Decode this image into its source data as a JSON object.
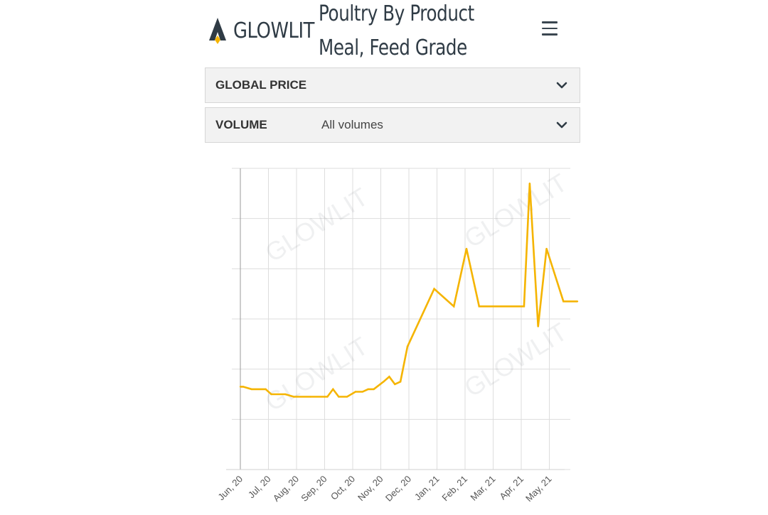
{
  "header": {
    "logo_text": "GLOWLIT",
    "title_line1": "Poultry By Product",
    "title_line2": "Meal, Feed Grade"
  },
  "filters": {
    "global_price_label": "GLOBAL PRICE",
    "volume_label": "VOLUME",
    "volume_value": "All volumes"
  },
  "icons": {
    "logo": "glowlit-logo-icon",
    "menu": "hamburger-menu-icon",
    "dropdown": "chevron-down-icon"
  },
  "colors": {
    "series": "#f5b400",
    "brand_accent": "#f5b400",
    "brand_dark": "#2f3b45"
  },
  "watermark": "GLOWLIT",
  "chart_data": {
    "type": "line",
    "x_ticks": [
      "Jun, 20",
      "Jul, 20",
      "Aug, 20",
      "Sep, 20",
      "Oct, 20",
      "Nov, 20",
      "Dec, 20",
      "Jan, 21",
      "Feb, 21",
      "Mar, 21",
      "Apr, 21",
      "May, 21"
    ],
    "grid": true,
    "y_ticks_visible": false,
    "ylim": [
      0,
      6
    ],
    "series": [
      {
        "x": [
          0,
          0.1,
          0.4,
          0.9,
          1.1,
          1.6,
          1.9,
          2.5,
          3.0,
          3.1,
          3.3,
          3.5,
          3.8,
          4.1,
          4.35,
          4.55,
          4.75,
          5.1,
          5.3,
          5.5,
          5.7,
          5.95,
          6.9,
          7.6,
          8.05,
          8.5,
          10.1,
          10.3,
          10.6,
          10.9,
          11.5,
          12.0
        ],
        "y": [
          1.65,
          1.65,
          1.6,
          1.6,
          1.5,
          1.5,
          1.45,
          1.45,
          1.45,
          1.45,
          1.6,
          1.45,
          1.45,
          1.55,
          1.55,
          1.6,
          1.6,
          1.75,
          1.85,
          1.7,
          1.75,
          2.45,
          3.6,
          3.25,
          4.4,
          3.25,
          3.25,
          5.7,
          2.85,
          4.4,
          3.35,
          3.35
        ]
      }
    ]
  }
}
